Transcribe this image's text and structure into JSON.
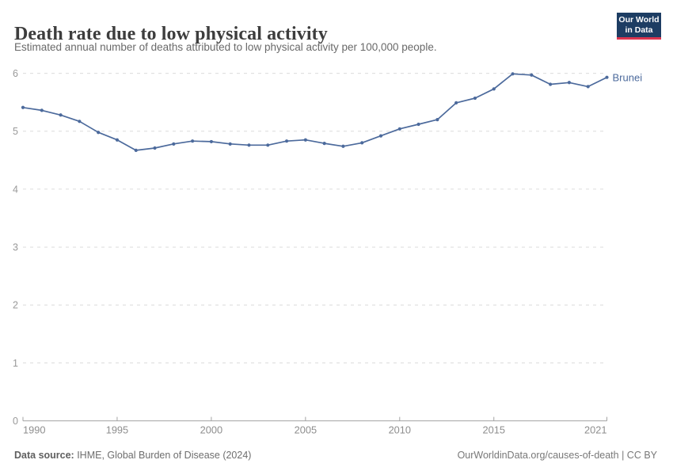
{
  "header": {
    "title": "Death rate due to low physical activity",
    "subtitle": "Estimated annual number of deaths attributed to low physical activity per 100,000 people.",
    "logo": {
      "line1": "Our World",
      "line2": "in Data",
      "bg_color": "#1d3d63",
      "accent_color": "#dc354f"
    }
  },
  "chart_data": {
    "type": "line",
    "title": "Death rate due to low physical activity",
    "xlabel": "",
    "ylabel": "",
    "ylim": [
      0,
      6
    ],
    "yticks": [
      0,
      1,
      2,
      3,
      4,
      5,
      6
    ],
    "xticks": [
      1990,
      1995,
      2000,
      2005,
      2010,
      2015,
      2021
    ],
    "grid": "horizontal-dashed",
    "legend_position": "end-of-line-label",
    "grid_color": "#dcdcdc",
    "axis_color": "#a3a3a3",
    "tick_label_color": "#8e8e8e",
    "series": [
      {
        "name": "Brunei",
        "color": "#4c6a9c",
        "x": [
          1990,
          1991,
          1992,
          1993,
          1994,
          1995,
          1996,
          1997,
          1998,
          1999,
          2000,
          2001,
          2002,
          2003,
          2004,
          2005,
          2006,
          2007,
          2008,
          2009,
          2010,
          2011,
          2012,
          2013,
          2014,
          2015,
          2016,
          2017,
          2018,
          2019,
          2020,
          2021
        ],
        "values": [
          5.41,
          5.36,
          5.28,
          5.17,
          4.98,
          4.85,
          4.67,
          4.71,
          4.78,
          4.83,
          4.82,
          4.78,
          4.76,
          4.76,
          4.83,
          4.85,
          4.79,
          4.74,
          4.8,
          4.92,
          5.04,
          5.12,
          5.2,
          5.49,
          5.57,
          5.73,
          5.99,
          5.97,
          5.81,
          5.84,
          5.77,
          5.93
        ]
      }
    ]
  },
  "footer": {
    "source_label": "Data source:",
    "source_text": " IHME, Global Burden of Disease (2024)",
    "right_text": "OurWorldinData.org/causes-of-death | CC BY"
  }
}
